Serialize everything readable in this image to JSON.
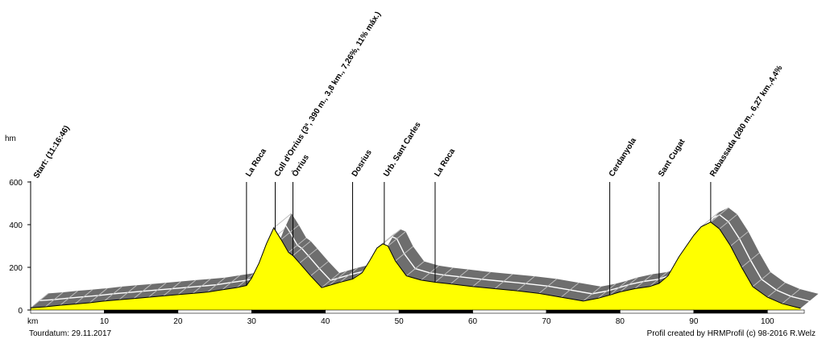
{
  "chart_data": {
    "type": "area",
    "subtype": "elevation-profile",
    "y_unit": "hm",
    "x_unit": "km",
    "xlim": [
      0,
      105
    ],
    "ylim": [
      0,
      600
    ],
    "x_ticks": [
      10,
      20,
      30,
      40,
      50,
      60,
      70,
      80,
      90,
      100
    ],
    "y_ticks": [
      0,
      200,
      400,
      600
    ],
    "profile": {
      "x": [
        0,
        2,
        4,
        6,
        8,
        10,
        12,
        14,
        16,
        18,
        20,
        22,
        24,
        26,
        28,
        29.3,
        30,
        31,
        32,
        33,
        34,
        35,
        35.6,
        36.5,
        38,
        39.5,
        40.5,
        42,
        43.7,
        45,
        46,
        47,
        47.8,
        48.5,
        49.5,
        51,
        53,
        54.9,
        57,
        60,
        63,
        66,
        69,
        72,
        75,
        77,
        78.6,
        80,
        82,
        84,
        85.3,
        86.5,
        88,
        90,
        91,
        92.3,
        93.5,
        95,
        96.5,
        98,
        100,
        102,
        104.5
      ],
      "y": [
        10,
        15,
        22,
        28,
        34,
        42,
        48,
        54,
        60,
        66,
        72,
        78,
        84,
        95,
        105,
        115,
        150,
        220,
        310,
        385,
        330,
        270,
        255,
        220,
        160,
        105,
        115,
        130,
        145,
        175,
        230,
        290,
        310,
        300,
        230,
        160,
        140,
        130,
        122,
        110,
        100,
        90,
        78,
        60,
        42,
        55,
        70,
        85,
        100,
        110,
        125,
        160,
        250,
        350,
        390,
        412,
        380,
        300,
        200,
        110,
        60,
        30,
        8
      ]
    },
    "waypoints": [
      {
        "km": 0.5,
        "label": "Start: (11:16:46)",
        "line": false
      },
      {
        "km": 29.3,
        "label": "La Roca",
        "line": true
      },
      {
        "km": 33.2,
        "label": "Coll d'Orrius (3ª, 390 m., 3,8 km., 7,26%, 11% máx.)",
        "line": true
      },
      {
        "km": 35.6,
        "label": "Òrrius",
        "line": true
      },
      {
        "km": 43.7,
        "label": "Dosrius",
        "line": true
      },
      {
        "km": 48.0,
        "label": "Urb. Sant Carles",
        "line": true
      },
      {
        "km": 54.9,
        "label": "La Roca",
        "line": true
      },
      {
        "km": 78.6,
        "label": "Cerdanyola",
        "line": true
      },
      {
        "km": 85.3,
        "label": "Sant Cugat",
        "line": true
      },
      {
        "km": 92.3,
        "label": "Rabassada (280 m., 6,27 km.,4,4%",
        "line": true
      }
    ],
    "footer_left": "Tourdatum: 29.11.2017",
    "footer_right": "Profil created by HRMProfil (c) 98-2016 R.Welz"
  },
  "colors": {
    "fill": "#ffff00",
    "shadow_dark": "#6e6e6e",
    "shadow_light": "#bdbdbd",
    "shadow_line": "#ffffff",
    "axis": "#000000"
  }
}
